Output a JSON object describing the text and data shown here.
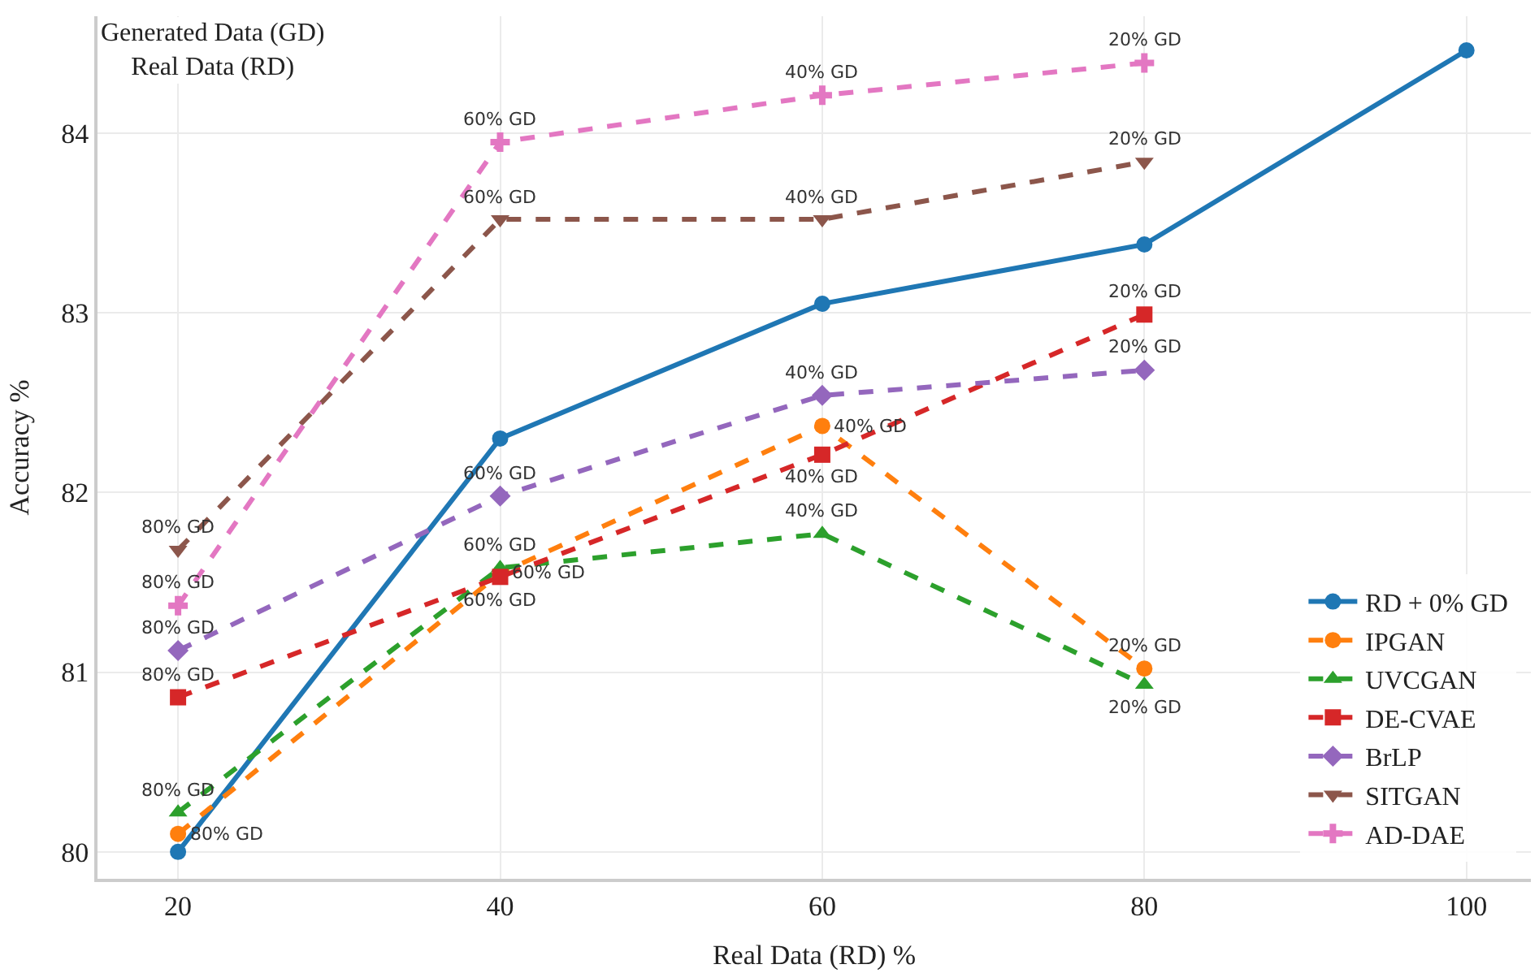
{
  "chart_data": {
    "type": "line",
    "xlabel": "Real Data (RD) %",
    "ylabel": "Accuracy %",
    "x": [
      20,
      40,
      60,
      80,
      100
    ],
    "xlim": [
      15,
      104
    ],
    "xticks": [
      20,
      40,
      60,
      80,
      100
    ],
    "ylim": [
      79.85,
      84.65
    ],
    "yticks": [
      80,
      81,
      82,
      83,
      84
    ],
    "grid": true,
    "legend": "bottom right",
    "annotations": [
      "Generated Data (GD)\nReal Data (RD)",
      {
        "text": "80% GD",
        "x": 20,
        "y": 80.1
      },
      {
        "text": "60% GD",
        "x": 40,
        "y": 81.55
      },
      {
        "text": "40% GD",
        "x": 60,
        "y": 82.37
      },
      {
        "text": "20% GD",
        "x": 80,
        "y": 81.02
      },
      {
        "text": "80% GD",
        "x": 20,
        "y": 80.22
      },
      {
        "text": "60% GD",
        "x": 40,
        "y": 81.58
      },
      {
        "text": "40% GD",
        "x": 60,
        "y": 81.77
      },
      {
        "text": "20% GD",
        "x": 80,
        "y": 80.93
      },
      {
        "text": "80% GD",
        "x": 20,
        "y": 80.86
      },
      {
        "text": "60% GD",
        "x": 40,
        "y": 81.53
      },
      {
        "text": "40% GD",
        "x": 60,
        "y": 82.21
      },
      {
        "text": "20% GD",
        "x": 80,
        "y": 82.99
      },
      {
        "text": "80% GD",
        "x": 20,
        "y": 81.12
      },
      {
        "text": "60% GD",
        "x": 40,
        "y": 81.98
      },
      {
        "text": "40% GD",
        "x": 60,
        "y": 82.54
      },
      {
        "text": "20% GD",
        "x": 80,
        "y": 82.68
      },
      {
        "text": "80% GD",
        "x": 20,
        "y": 81.68
      },
      {
        "text": "60% GD",
        "x": 40,
        "y": 83.52
      },
      {
        "text": "40% GD",
        "x": 60,
        "y": 83.52
      },
      {
        "text": "20% GD",
        "x": 80,
        "y": 83.84
      },
      {
        "text": "80% GD",
        "x": 20,
        "y": 81.37
      },
      {
        "text": "60% GD",
        "x": 40,
        "y": 83.95
      },
      {
        "text": "40% GD",
        "x": 60,
        "y": 84.21
      },
      {
        "text": "20% GD",
        "x": 80,
        "y": 84.39
      }
    ],
    "series": [
      {
        "name": "RD + 0% GD",
        "color": "#1f77b4",
        "marker": "circle",
        "line_style": "solid",
        "values": [
          80.0,
          82.3,
          83.05,
          83.38,
          84.46
        ]
      },
      {
        "name": "IPGAN",
        "color": "#ff7f0e",
        "marker": "circle",
        "line_style": "dashed",
        "values": [
          80.1,
          81.55,
          82.37,
          81.02,
          null
        ]
      },
      {
        "name": "UVCGAN",
        "color": "#2ca02c",
        "marker": "triangle",
        "line_style": "dashed",
        "values": [
          80.22,
          81.58,
          81.77,
          80.93,
          null
        ]
      },
      {
        "name": "DE-CVAE",
        "color": "#d62728",
        "marker": "square",
        "line_style": "dashed",
        "values": [
          80.86,
          81.53,
          82.21,
          82.99,
          null
        ]
      },
      {
        "name": "BrLP",
        "color": "#9467bd",
        "marker": "diamond",
        "line_style": "dashed",
        "values": [
          81.12,
          81.98,
          82.54,
          82.68,
          null
        ]
      },
      {
        "name": "SITGAN",
        "color": "#8c564b",
        "marker": "triangle-down",
        "line_style": "dashed",
        "values": [
          81.68,
          83.52,
          83.52,
          83.84,
          null
        ]
      },
      {
        "name": "AD-DAE",
        "color": "#e377c2",
        "marker": "cross",
        "line_style": "dashed",
        "values": [
          81.37,
          83.95,
          84.21,
          84.39,
          null
        ]
      }
    ]
  }
}
